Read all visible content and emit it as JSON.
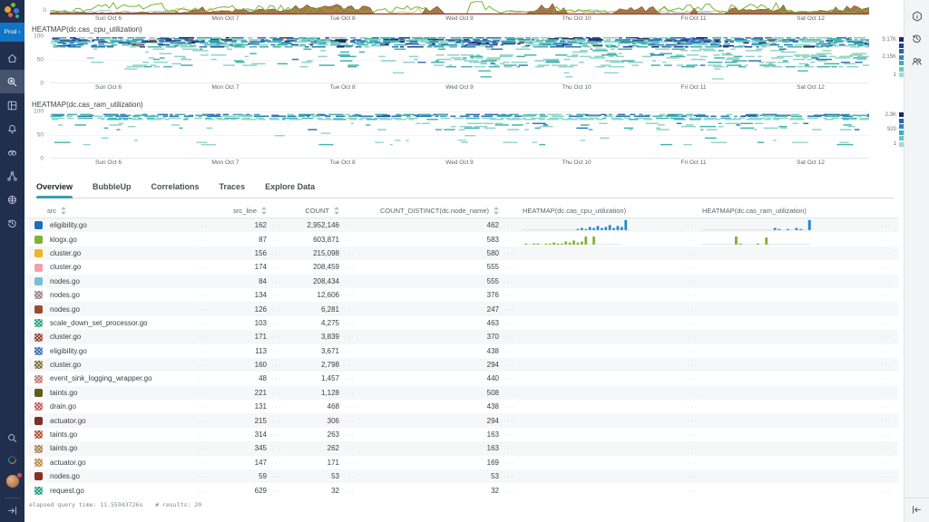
{
  "app": {
    "env_label": "Prod ›"
  },
  "left_nav": {
    "items": [
      "home",
      "query",
      "boards",
      "alerts",
      "slos",
      "service-map",
      "environments",
      "history"
    ],
    "active_item": "query",
    "bottom_items": [
      "search",
      "usage",
      "account",
      "expand-sidebar"
    ]
  },
  "right_rail": {
    "items": [
      "details",
      "query-history",
      "team"
    ],
    "bottom_items": [
      "collapse-panel"
    ]
  },
  "x_ticks": [
    "Sun Oct 6",
    "Mon Oct 7",
    "Tue Oct 8",
    "Wed Oct 9",
    "Thu Oct 10",
    "Fri Oct 11",
    "Sat Oct 12"
  ],
  "top_chart": {
    "type": "area",
    "y_zero_label": "0",
    "seed": 7,
    "baseline_color": "#8f3a32",
    "series": [
      {
        "stroke": "#7ab3d4",
        "scale": 0.45,
        "gap": 0.5,
        "width": 0.7
      },
      {
        "stroke": "#e6a23c",
        "scale": 0.55,
        "gap": 0.5,
        "width": 0.7
      },
      {
        "fill": "#a06c38",
        "stroke": "#7c5226",
        "opacity": 0.92,
        "scale": 0.95,
        "gap": 0.42
      },
      {
        "stroke": "#74b82e",
        "scale": 1.0,
        "gap": 0.3,
        "width": 1.0
      }
    ]
  },
  "charts": [
    {
      "type": "heatmap",
      "title": "HEATMAP(dc.cas_cpu_utilization)",
      "y_ticks": [
        "100",
        "50",
        "0"
      ],
      "ylim": [
        0,
        100
      ],
      "seed": 42,
      "legend": {
        "labels": [
          "5.17K",
          "2.15K",
          "1"
        ],
        "colors": [
          "#1d2a66",
          "#25418f",
          "#2c62a9",
          "#2f8bb4",
          "#3fb0b4",
          "#6cc8bd",
          "#9edcd0"
        ]
      },
      "bands": [
        {
          "v0": 98,
          "v1": 78,
          "step": 2.1,
          "h": 1.6,
          "cov": [
            0.93,
            0.95
          ],
          "clusters": [],
          "palette": [
            [
              "#46b4ae",
              4
            ],
            [
              "#2e7ab8",
              3
            ],
            [
              "#8fd4c6",
              3
            ],
            [
              "#24489b",
              1.5
            ],
            [
              "#1d2963",
              0.8
            ],
            [
              "#8c3b2e",
              0.25
            ]
          ]
        },
        {
          "v0": 74,
          "v1": 36,
          "step": 3.1,
          "h": 1.5,
          "cov": [
            0.05,
            0.3
          ],
          "clusters": [
            [
              0.13,
              0.035,
              0.18
            ],
            [
              0.52,
              0.06,
              0.22
            ],
            [
              0.65,
              0.05,
              0.18
            ],
            [
              0.78,
              0.05,
              0.22
            ],
            [
              0.88,
              0.045,
              0.18
            ]
          ],
          "palette": [
            [
              "#8fd4c6",
              6
            ],
            [
              "#46b4ae",
              3
            ],
            [
              "#2e7ab8",
              0.8
            ]
          ]
        },
        {
          "v0": 32,
          "v1": 8,
          "step": 4.2,
          "h": 1.4,
          "cov": [
            0.025,
            0.05
          ],
          "clusters": [
            [
              0.52,
              0.05,
              0.08
            ],
            [
              0.13,
              0.03,
              0.05
            ]
          ],
          "palette": [
            [
              "#8fd4c6",
              5
            ],
            [
              "#46b4ae",
              1
            ]
          ]
        }
      ]
    },
    {
      "type": "heatmap",
      "title": "HEATMAP(dc.cas_ram_utilization)",
      "y_ticks": [
        "100",
        "50",
        "0"
      ],
      "ylim": [
        0,
        100
      ],
      "seed": 1337,
      "legend": {
        "labels": [
          "2.3K",
          "920",
          "1"
        ],
        "colors": [
          "#1d2a66",
          "#2c62a9",
          "#2f8bb4",
          "#3fb0b4",
          "#6cc8bd",
          "#9edcd0"
        ]
      },
      "bands": [
        {
          "v0": 95,
          "v1": 90,
          "step": 1.8,
          "h": 1.6,
          "cov": [
            0.95,
            0.95
          ],
          "clusters": [],
          "palette": [
            [
              "#2e7ab8",
              4
            ],
            [
              "#46b4ae",
              3
            ],
            [
              "#8fd4c6",
              2
            ],
            [
              "#24489b",
              1
            ]
          ]
        },
        {
          "v0": 87,
          "v1": 84,
          "step": 2.4,
          "h": 1.5,
          "cov": [
            0.75,
            0.8
          ],
          "clusters": [],
          "palette": [
            [
              "#8fd4c6",
              5
            ],
            [
              "#46b4ae",
              2
            ]
          ]
        },
        {
          "v0": 76,
          "v1": 60,
          "step": 3.3,
          "h": 1.5,
          "cov": [
            0.1,
            0.18
          ],
          "clusters": [
            [
              0.5,
              0.05,
              0.15
            ],
            [
              0.62,
              0.04,
              0.12
            ],
            [
              0.84,
              0.04,
              0.12
            ],
            [
              0.3,
              0.03,
              0.08
            ]
          ],
          "palette": [
            [
              "#8fd4c6",
              6
            ],
            [
              "#46b4ae",
              2.5
            ],
            [
              "#2e7ab8",
              1
            ]
          ]
        },
        {
          "v0": 55,
          "v1": 44,
          "step": 5,
          "h": 1.4,
          "cov": [
            0.02,
            0.05
          ],
          "clusters": [],
          "palette": [
            [
              "#8fd4c6",
              5
            ],
            [
              "#46b4ae",
              1
            ]
          ]
        },
        {
          "v0": 40,
          "v1": 30,
          "step": 4.5,
          "h": 1.4,
          "cov": [
            0.05,
            0.1
          ],
          "clusters": [
            [
              0.45,
              0.06,
              0.08
            ]
          ],
          "palette": [
            [
              "#8fd4c6",
              5
            ],
            [
              "#46b4ae",
              1
            ]
          ]
        }
      ]
    }
  ],
  "tabs": {
    "items": [
      "Overview",
      "BubbleUp",
      "Correlations",
      "Traces",
      "Explore Data"
    ],
    "active_index": 0
  },
  "table": {
    "columns": [
      "src",
      "src_line",
      "COUNT",
      "COUNT_DISTINCT(dc.node_name)",
      "HEATMAP(dc.cas_cpu_utilization)",
      "HEATMAP(dc.cas_ram_utilization)"
    ],
    "rows": [
      {
        "color": "#1f6eb8",
        "pattern": false,
        "src": "eligibility.go",
        "src_line": "162",
        "count": "2,952,146",
        "distinct": "462",
        "cpu_spark": {
          "color": "#1e87cf",
          "baseline": 0.68,
          "bars": [
            0,
            0,
            0,
            0,
            0,
            0,
            0,
            0,
            0,
            0,
            0,
            0,
            0,
            0,
            1,
            2,
            1,
            3,
            2,
            4,
            2,
            3,
            5,
            2,
            4,
            3,
            10,
            0,
            0,
            0,
            0,
            0,
            0,
            0,
            0,
            0,
            0,
            0,
            0,
            0
          ]
        },
        "ram_spark": {
          "color": "#1e87cf",
          "baseline": 0.64,
          "bars": [
            0,
            0,
            0,
            0,
            0,
            0,
            0,
            0,
            0,
            0,
            0,
            0,
            0,
            0,
            0,
            0,
            0,
            2,
            1,
            0,
            1,
            0,
            2,
            1,
            0,
            10,
            0,
            0,
            0,
            0,
            0,
            0,
            0,
            0,
            0,
            0,
            0,
            0,
            0,
            0
          ]
        }
      },
      {
        "color": "#7cb332",
        "pattern": false,
        "src": "klogx.go",
        "src_line": "87",
        "count": "603,871",
        "distinct": "583",
        "cpu_spark": {
          "color": "#7cb332",
          "baseline": 0.63,
          "bars": [
            0,
            1,
            0,
            1,
            1,
            0,
            1,
            1,
            2,
            1,
            1,
            3,
            2,
            4,
            2,
            3,
            8,
            0,
            8,
            0,
            0,
            0,
            0,
            0,
            0,
            0,
            0,
            0,
            0,
            0,
            0,
            0,
            0,
            0,
            0,
            0,
            0,
            0,
            0,
            0
          ]
        },
        "ram_spark": {
          "color": "#7cb332",
          "baseline": 0.63,
          "bars": [
            0,
            0,
            0,
            0,
            0,
            0,
            0,
            0,
            8,
            1,
            0,
            0,
            0,
            1,
            0,
            7,
            0,
            0,
            0,
            0,
            0,
            0,
            0,
            0,
            0,
            0,
            0,
            0,
            0,
            0,
            0,
            0,
            0,
            0,
            0,
            0,
            0,
            0,
            0,
            0
          ]
        }
      },
      {
        "color": "#f0b429",
        "pattern": false,
        "src": "cluster.go",
        "src_line": "156",
        "count": "215,098",
        "distinct": "580",
        "cpu_spark": null,
        "ram_spark": null
      },
      {
        "color": "#f2a0ae",
        "pattern": false,
        "src": "cluster.go",
        "src_line": "174",
        "count": "208,459",
        "distinct": "555",
        "cpu_spark": null,
        "ram_spark": null
      },
      {
        "color": "#7bbdd4",
        "pattern": false,
        "src": "nodes.go",
        "src_line": "84",
        "count": "208,434",
        "distinct": "555",
        "cpu_spark": null,
        "ram_spark": null
      },
      {
        "color": "#9b7d8f",
        "pattern": true,
        "src": "nodes.go",
        "src_line": "134",
        "count": "12,606",
        "distinct": "376",
        "cpu_spark": null,
        "ram_spark": null
      },
      {
        "color": "#9a4b2f",
        "pattern": false,
        "src": "nodes.go",
        "src_line": "126",
        "count": "6,281",
        "distinct": "247",
        "cpu_spark": null,
        "ram_spark": null
      },
      {
        "color": "#23a47e",
        "pattern": true,
        "src": "scale_down_set_processor.go",
        "src_line": "103",
        "count": "4,275",
        "distinct": "463",
        "cpu_spark": null,
        "ram_spark": null
      },
      {
        "color": "#8f3f2e",
        "pattern": true,
        "src": "cluster.go",
        "src_line": "171",
        "count": "3,839",
        "distinct": "370",
        "cpu_spark": null,
        "ram_spark": null
      },
      {
        "color": "#2e6eb8",
        "pattern": true,
        "src": "eligibility.go",
        "src_line": "113",
        "count": "3,671",
        "distinct": "438",
        "cpu_spark": null,
        "ram_spark": null
      },
      {
        "color": "#7a7030",
        "pattern": true,
        "src": "cluster.go",
        "src_line": "160",
        "count": "2,798",
        "distinct": "294",
        "cpu_spark": null,
        "ram_spark": null
      },
      {
        "color": "#c1766e",
        "pattern": true,
        "src": "event_sink_logging_wrapper.go",
        "src_line": "48",
        "count": "1,457",
        "distinct": "440",
        "cpu_spark": null,
        "ram_spark": null
      },
      {
        "color": "#5f5c20",
        "pattern": false,
        "src": "taints.go",
        "src_line": "221",
        "count": "1,128",
        "distinct": "508",
        "cpu_spark": null,
        "ram_spark": null
      },
      {
        "color": "#c25b54",
        "pattern": true,
        "src": "drain.go",
        "src_line": "131",
        "count": "468",
        "distinct": "438",
        "cpu_spark": null,
        "ram_spark": null
      },
      {
        "color": "#7e2f27",
        "pattern": false,
        "src": "actuator.go",
        "src_line": "215",
        "count": "306",
        "distinct": "294",
        "cpu_spark": null,
        "ram_spark": null
      },
      {
        "color": "#b04f2c",
        "pattern": true,
        "src": "taints.go",
        "src_line": "314",
        "count": "263",
        "distinct": "163",
        "cpu_spark": null,
        "ram_spark": null
      },
      {
        "color": "#a97c4a",
        "pattern": true,
        "src": "taints.go",
        "src_line": "345",
        "count": "262",
        "distinct": "163",
        "cpu_spark": null,
        "ram_spark": null
      },
      {
        "color": "#b68b52",
        "pattern": true,
        "src": "actuator.go",
        "src_line": "147",
        "count": "171",
        "distinct": "169",
        "cpu_spark": null,
        "ram_spark": null
      },
      {
        "color": "#8a2f23",
        "pattern": false,
        "src": "nodes.go",
        "src_line": "59",
        "count": "53",
        "distinct": "53",
        "cpu_spark": null,
        "ram_spark": null
      },
      {
        "color": "#1f9e86",
        "pattern": true,
        "src": "request.go",
        "src_line": "629",
        "count": "32",
        "distinct": "32",
        "cpu_spark": null,
        "ram_spark": null
      }
    ]
  },
  "status": {
    "elapsed": "elapsed query time: 11.55943726s",
    "results": "# results: 20"
  }
}
